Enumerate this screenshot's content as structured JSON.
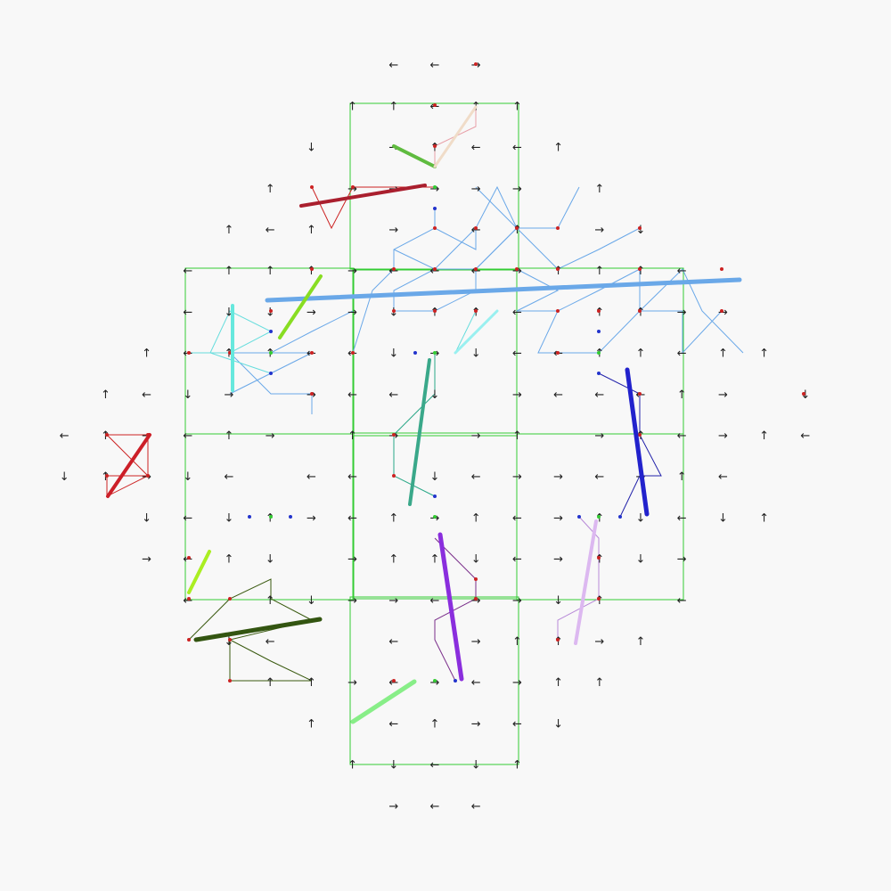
{
  "glyphs": {
    "up": "↑",
    "down": "↓",
    "left": "←",
    "right": "→"
  },
  "colors": {
    "background": "#f8f8f8",
    "room_outline": "#33cc33",
    "arrow_text": "#222222",
    "dot_red": "#cc2222",
    "dot_blue": "#2233cc",
    "dot_green": "#33cc33"
  },
  "rooms": [
    {
      "id": "top"
    },
    {
      "id": "mid-left"
    },
    {
      "id": "mid-center"
    },
    {
      "id": "mid-right"
    },
    {
      "id": "low-left"
    },
    {
      "id": "low-center"
    },
    {
      "id": "low-right"
    },
    {
      "id": "bottom"
    }
  ],
  "path_colors": [
    "#6aa8e8",
    "#e8a0a8",
    "#2222aa",
    "#7a2e8a",
    "#b88ad8",
    "#3a5a10",
    "#cc2222",
    "#2aa888",
    "#66dddd"
  ],
  "strokes": [
    {
      "name": "stroke-light-blue-long",
      "color": "#6aa8e8"
    },
    {
      "name": "stroke-dark-red-top",
      "color": "#aa1f2e"
    },
    {
      "name": "stroke-green-top",
      "color": "#5fbb3f"
    },
    {
      "name": "stroke-peach-top",
      "color": "#f0dcc8"
    },
    {
      "name": "stroke-lime-upper-left",
      "color": "#88dd22"
    },
    {
      "name": "stroke-aqua-left",
      "color": "#66e8dd"
    },
    {
      "name": "stroke-teal-center",
      "color": "#3aa88a"
    },
    {
      "name": "stroke-cyan-center",
      "color": "#99f0f0"
    },
    {
      "name": "stroke-blue-right",
      "color": "#2222cc"
    },
    {
      "name": "stroke-red-left",
      "color": "#cc1f28"
    },
    {
      "name": "stroke-yellow-green-lower-left",
      "color": "#aaee22"
    },
    {
      "name": "stroke-dark-green-lower-left",
      "color": "#335511"
    },
    {
      "name": "stroke-purple-lower-center",
      "color": "#8a2edd"
    },
    {
      "name": "stroke-lavender-lower-right",
      "color": "#dcb8f0"
    },
    {
      "name": "stroke-mint-bottom",
      "color": "#88ee88"
    }
  ]
}
